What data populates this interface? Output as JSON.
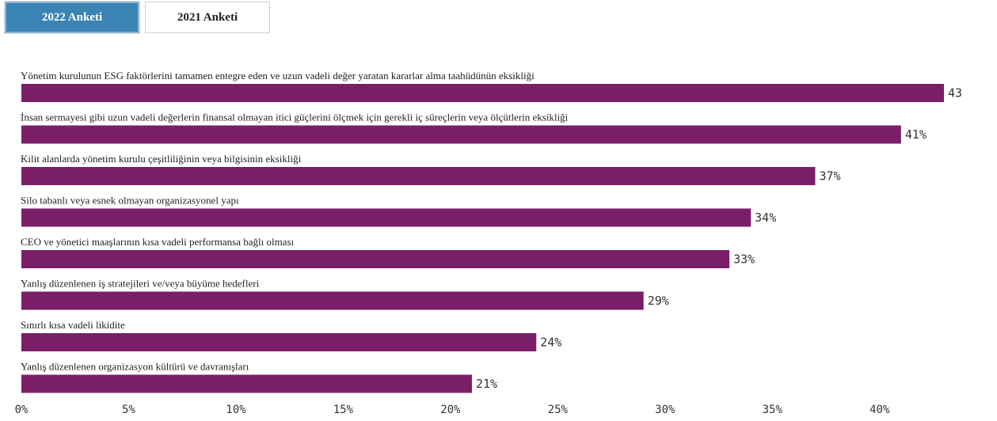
{
  "tabs": [
    {
      "label": "2022 Anketi",
      "active": true
    },
    {
      "label": "2021 Anketi",
      "active": false
    }
  ],
  "colors": {
    "bar": "#7a1e6a",
    "tab_active": "#3a84b4"
  },
  "chart_data": {
    "type": "bar",
    "orientation": "horizontal",
    "categories": [
      "Yönetim kurulunun ESG faktörlerini tamamen entegre eden ve uzun vadeli değer yaratan kararlar alma taahüdünün eksikliği",
      "İnsan sermayesi gibi uzun vadeli değerlerin finansal olmayan itici güçlerini ölçmek için gerekli iç süreçlerin veya ölçütlerin eksikliği",
      "Kilit alanlarda yönetim kurulu çeşitliliğinin veya bilgisinin eksikliği",
      "Silo tabanlı veya esnek olmayan organizasyonel yapı",
      "CEO ve yönetici maaşlarının kısa vadeli performansa bağlı olması",
      "Yanlış düzenlenen iş stratejileri ve/veya büyüme hedefleri",
      "Sınırlı kısa vadeli likidite",
      "Yanlış düzenlenen organizasyon kültürü ve davranışları"
    ],
    "values": [
      43,
      41,
      37,
      34,
      33,
      29,
      24,
      21
    ],
    "value_labels": [
      "43",
      "41%",
      "37%",
      "34%",
      "33%",
      "29%",
      "24%",
      "21%"
    ],
    "x_ticks": [
      "0%",
      "5%",
      "10%",
      "15%",
      "20%",
      "25%",
      "30%",
      "35%",
      "40%"
    ],
    "xlim": [
      0,
      43
    ],
    "grid": false,
    "title": "",
    "xlabel": "",
    "ylabel": ""
  }
}
